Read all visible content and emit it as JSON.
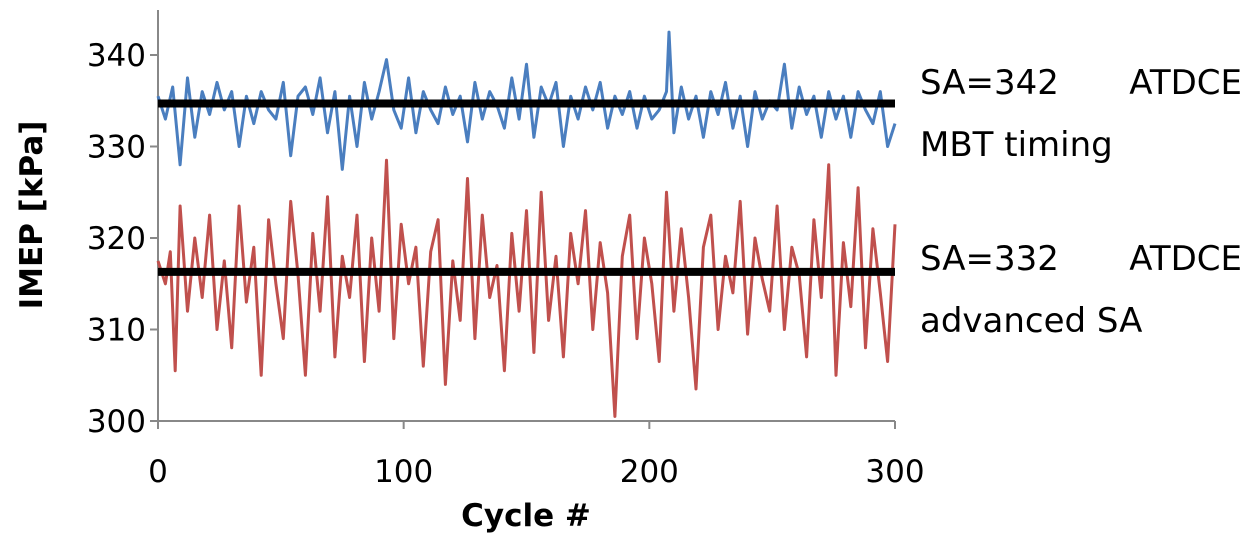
{
  "chart_data": {
    "type": "line",
    "xlabel": "Cycle #",
    "ylabel": "IMEP [kPa]",
    "xlim": [
      0,
      300
    ],
    "ylim": [
      300,
      342
    ],
    "x_ticks": [
      "0",
      "100",
      "200",
      "300"
    ],
    "y_ticks": [
      "300",
      "310",
      "320",
      "330",
      "340"
    ],
    "grid": false,
    "annotations": [
      {
        "line1_a": "SA=342",
        "line1_b": "ATDCE",
        "line2": "MBT timing"
      },
      {
        "line1_a": "SA=332",
        "line1_b": "ATDCE",
        "line2": "advanced SA"
      }
    ],
    "series": [
      {
        "color": "#4a7ebf",
        "mean": 334.7,
        "x": [
          0,
          3,
          6,
          9,
          12,
          15,
          18,
          21,
          24,
          27,
          30,
          33,
          36,
          39,
          42,
          45,
          48,
          51,
          54,
          57,
          60,
          63,
          66,
          69,
          72,
          75,
          78,
          81,
          84,
          87,
          90,
          93,
          96,
          99,
          102,
          105,
          108,
          111,
          114,
          117,
          120,
          123,
          126,
          129,
          132,
          135,
          138,
          141,
          144,
          147,
          150,
          153,
          156,
          159,
          162,
          165,
          168,
          171,
          174,
          177,
          180,
          183,
          186,
          189,
          192,
          195,
          198,
          201,
          204,
          207,
          208,
          210,
          213,
          216,
          219,
          222,
          225,
          228,
          231,
          234,
          237,
          240,
          243,
          246,
          249,
          252,
          255,
          258,
          261,
          264,
          267,
          270,
          273,
          276,
          279,
          282,
          285,
          288,
          291,
          294,
          297,
          300
        ],
        "values": [
          335.5,
          333,
          336.5,
          328,
          337.5,
          331,
          336,
          333.5,
          337,
          334,
          336,
          330,
          335.5,
          332.5,
          336,
          334,
          333,
          337,
          329,
          335.5,
          336.5,
          333.5,
          337.5,
          331.5,
          336,
          327.5,
          335.5,
          330,
          337,
          333,
          336,
          339.5,
          334,
          332,
          337.5,
          331.5,
          336,
          334,
          332.5,
          336.5,
          333.5,
          335.5,
          330.5,
          337,
          333,
          336,
          334.5,
          332,
          337.5,
          333,
          339,
          331,
          336.5,
          334.5,
          337,
          330,
          335.5,
          333,
          336.5,
          334,
          337,
          332,
          335.5,
          333.5,
          336,
          332,
          335.5,
          333,
          334,
          336,
          342.5,
          331.5,
          336.5,
          333,
          335.5,
          331,
          336,
          333.5,
          337,
          332,
          335.5,
          330,
          336,
          333,
          335,
          334,
          339,
          332,
          336.5,
          333.5,
          335.5,
          331,
          336,
          333,
          335.5,
          331,
          336,
          334,
          332.5,
          336,
          330,
          332.5
        ]
      },
      {
        "color": "#c0504d",
        "mean": 316.3,
        "x": [
          0,
          3,
          5,
          7,
          9,
          12,
          15,
          18,
          21,
          24,
          27,
          30,
          33,
          36,
          39,
          42,
          45,
          48,
          51,
          54,
          57,
          60,
          63,
          66,
          69,
          72,
          75,
          78,
          81,
          84,
          87,
          90,
          93,
          96,
          99,
          102,
          105,
          108,
          111,
          114,
          117,
          120,
          123,
          126,
          129,
          132,
          135,
          138,
          141,
          144,
          147,
          150,
          153,
          156,
          159,
          162,
          165,
          168,
          171,
          174,
          177,
          180,
          183,
          186,
          189,
          192,
          195,
          198,
          201,
          204,
          207,
          210,
          213,
          216,
          219,
          222,
          225,
          228,
          231,
          234,
          237,
          240,
          243,
          246,
          249,
          252,
          255,
          258,
          261,
          264,
          267,
          270,
          273,
          276,
          279,
          282,
          285,
          288,
          291,
          294,
          297,
          300
        ],
        "values": [
          317.5,
          315,
          318.5,
          305.5,
          323.5,
          312,
          320,
          313.5,
          322.5,
          310,
          317.5,
          308,
          323.5,
          313,
          319,
          305,
          322,
          315,
          309,
          324,
          316,
          305,
          320.5,
          312,
          324.5,
          307,
          318,
          313.5,
          322.5,
          306.5,
          320,
          312,
          328.5,
          309,
          321.5,
          315,
          319,
          306,
          318.5,
          322,
          304,
          317.5,
          311,
          326.5,
          309,
          322.5,
          313.5,
          317,
          305.5,
          320.5,
          312,
          323,
          307.5,
          325,
          311,
          318,
          307,
          320.5,
          315,
          323,
          310,
          319.5,
          314,
          300.5,
          318,
          322.5,
          309,
          320,
          315,
          306.5,
          325,
          312,
          321,
          313.5,
          303.5,
          319,
          322.5,
          310,
          318,
          314,
          324,
          309.5,
          320,
          315.5,
          312,
          323.5,
          310,
          319,
          316,
          307,
          322,
          313.5,
          328,
          305,
          319.5,
          312.5,
          325.5,
          308,
          321,
          314,
          306.5,
          321.5
        ]
      }
    ]
  }
}
